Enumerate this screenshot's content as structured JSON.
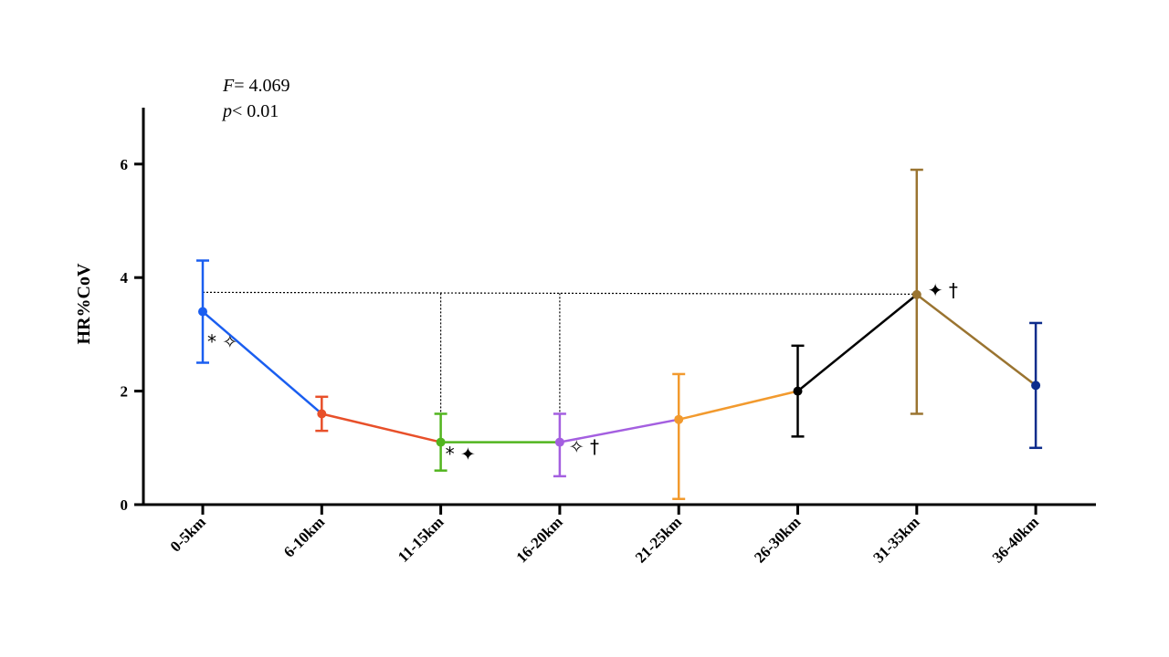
{
  "stats": {
    "f_symbol": "F",
    "f_text": "= 4.069",
    "p_symbol": "p",
    "p_text": "< 0.01"
  },
  "chart_data": {
    "type": "line",
    "title": "",
    "xlabel": "",
    "ylabel": "HR%CoV",
    "ylim": [
      0,
      7
    ],
    "yticks": [
      "0",
      "2",
      "4",
      "6"
    ],
    "categories": [
      "0-5km",
      "6-10km",
      "11-15km",
      "16-20km",
      "21-25km",
      "26-30km",
      "31-35km",
      "36-40km"
    ],
    "values": [
      3.4,
      1.6,
      1.1,
      1.1,
      1.5,
      2.0,
      3.7,
      2.1
    ],
    "err_upper": [
      4.3,
      1.9,
      1.6,
      1.6,
      2.3,
      2.8,
      5.9,
      3.2
    ],
    "err_lower": [
      2.5,
      1.3,
      0.6,
      0.5,
      0.1,
      1.2,
      1.6,
      1.0
    ],
    "colors": [
      "#1a5ef0",
      "#e8502a",
      "#52b51f",
      "#a45fe0",
      "#f29a2e",
      "#000000",
      "#9a7430",
      "#0d2c8c"
    ],
    "comparison_level": 3.74,
    "comparison_points": [
      "0-5km",
      "11-15km",
      "16-20km",
      "31-35km"
    ],
    "annotations": [
      {
        "category": "0-5km",
        "text": "* ✧"
      },
      {
        "category": "11-15km",
        "text": "* ✦"
      },
      {
        "category": "16-20km",
        "text": "✧  †"
      },
      {
        "category": "31-35km",
        "text": "✦ †"
      }
    ],
    "grid": false
  }
}
